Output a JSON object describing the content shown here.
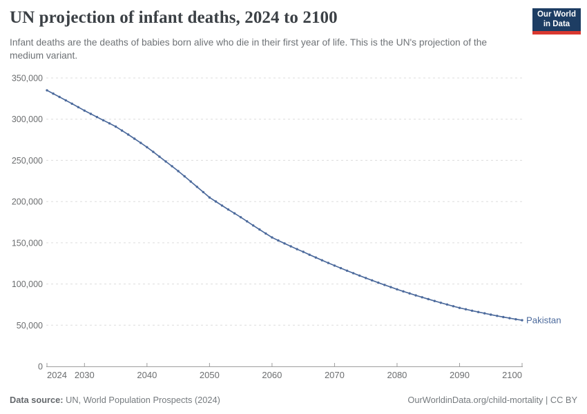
{
  "header": {
    "title": "UN projection of infant deaths, 2024 to 2100",
    "subtitle": "Infant deaths are the deaths of babies born alive who die in their first year of life. This is the UN's projection of the medium variant.",
    "logo": {
      "line1": "Our World",
      "line2": "in Data",
      "bg_color": "#1d3d63",
      "accent_color": "#d93830"
    }
  },
  "chart_data": {
    "type": "line",
    "title": "UN projection of infant deaths, 2024 to 2100",
    "xlabel": "",
    "ylabel": "",
    "xlim": [
      2024,
      2100
    ],
    "ylim": [
      0,
      350000
    ],
    "grid": "horizontal-dashed",
    "legend_position": "end-of-line-label",
    "x": [
      2024,
      2025,
      2026,
      2027,
      2028,
      2029,
      2030,
      2031,
      2032,
      2033,
      2034,
      2035,
      2036,
      2037,
      2038,
      2039,
      2040,
      2041,
      2042,
      2043,
      2044,
      2045,
      2046,
      2047,
      2048,
      2049,
      2050,
      2051,
      2052,
      2053,
      2054,
      2055,
      2056,
      2057,
      2058,
      2059,
      2060,
      2061,
      2062,
      2063,
      2064,
      2065,
      2066,
      2067,
      2068,
      2069,
      2070,
      2071,
      2072,
      2073,
      2074,
      2075,
      2076,
      2077,
      2078,
      2079,
      2080,
      2081,
      2082,
      2083,
      2084,
      2085,
      2086,
      2087,
      2088,
      2089,
      2090,
      2091,
      2092,
      2093,
      2094,
      2095,
      2096,
      2097,
      2098,
      2099,
      2100
    ],
    "series": [
      {
        "name": "Pakistan",
        "color": "#4c6a9c",
        "values": [
          335000,
          331000,
          327000,
          322900,
          318800,
          314600,
          310400,
          306500,
          302600,
          298700,
          294900,
          291000,
          286200,
          281300,
          276300,
          271200,
          266000,
          260300,
          254500,
          248700,
          242900,
          237000,
          230700,
          224300,
          217900,
          211500,
          205000,
          200100,
          195200,
          190400,
          185700,
          181000,
          176000,
          171000,
          166100,
          161300,
          156500,
          152800,
          149200,
          145700,
          142300,
          139000,
          135500,
          132100,
          128800,
          125500,
          122300,
          119200,
          116100,
          113100,
          110200,
          107300,
          104400,
          101600,
          98900,
          96200,
          93500,
          91000,
          88600,
          86200,
          83900,
          81600,
          79400,
          77200,
          75100,
          73000,
          71000,
          69300,
          67600,
          66000,
          64400,
          62800,
          61300,
          59900,
          58500,
          57200,
          56000
        ]
      }
    ],
    "yticks": [
      {
        "value": 0,
        "label": "0"
      },
      {
        "value": 50000,
        "label": "50,000"
      },
      {
        "value": 100000,
        "label": "100,000"
      },
      {
        "value": 150000,
        "label": "150,000"
      },
      {
        "value": 200000,
        "label": "200,000"
      },
      {
        "value": 250000,
        "label": "250,000"
      },
      {
        "value": 300000,
        "label": "300,000"
      },
      {
        "value": 350000,
        "label": "350,000"
      }
    ],
    "xticks": [
      {
        "value": 2024,
        "label": "2024",
        "anchor": "start"
      },
      {
        "value": 2030,
        "label": "2030",
        "anchor": "middle"
      },
      {
        "value": 2040,
        "label": "2040",
        "anchor": "middle"
      },
      {
        "value": 2050,
        "label": "2050",
        "anchor": "middle"
      },
      {
        "value": 2060,
        "label": "2060",
        "anchor": "middle"
      },
      {
        "value": 2070,
        "label": "2070",
        "anchor": "middle"
      },
      {
        "value": 2080,
        "label": "2080",
        "anchor": "middle"
      },
      {
        "value": 2090,
        "label": "2090",
        "anchor": "middle"
      },
      {
        "value": 2100,
        "label": "2100",
        "anchor": "end"
      }
    ],
    "colors": {
      "line": "#4c6a9c",
      "entity_label": "#4c6a9c",
      "gridline": "#dcdcdc",
      "axis": "#9d9d9d",
      "tick_label": "#6b6d6f"
    }
  },
  "footer": {
    "source_label": "Data source:",
    "source_text": "UN, World Population Prospects (2024)",
    "attribution": "OurWorldinData.org/child-mortality | CC BY"
  }
}
